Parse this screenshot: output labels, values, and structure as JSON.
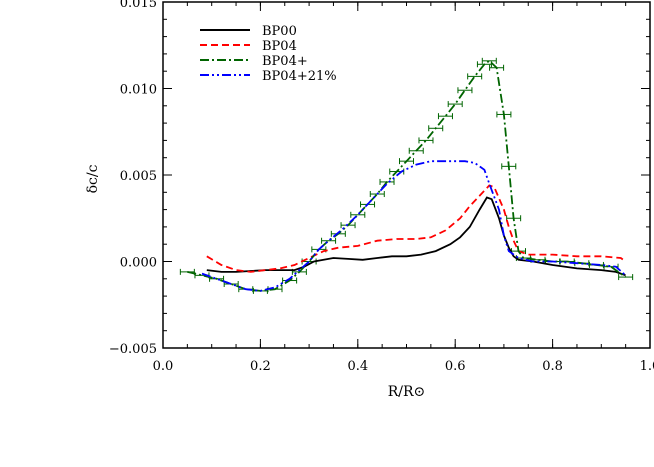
{
  "chart_data": {
    "type": "line",
    "xlabel": "R/R⊙",
    "ylabel": "δc/c",
    "xlim": [
      0.0,
      1.0
    ],
    "ylim": [
      -0.005,
      0.015
    ],
    "x_ticks": [
      {
        "value": 0.0,
        "label": "0.0"
      },
      {
        "value": 0.2,
        "label": "0.2"
      },
      {
        "value": 0.4,
        "label": "0.4"
      },
      {
        "value": 0.6,
        "label": "0.6"
      },
      {
        "value": 0.8,
        "label": "0.8"
      },
      {
        "value": 1.0,
        "label": "1.0"
      }
    ],
    "y_ticks": [
      {
        "value": -0.005,
        "label": "−0.005"
      },
      {
        "value": 0.0,
        "label": "0.000"
      },
      {
        "value": 0.005,
        "label": "0.005"
      },
      {
        "value": 0.01,
        "label": "0.010"
      },
      {
        "value": 0.015,
        "label": "0.015"
      }
    ],
    "legend_position": "top-left",
    "series": [
      {
        "name": "BP00",
        "color": "#000000",
        "dash": "solid",
        "points": [
          [
            0.09,
            -0.0005
          ],
          [
            0.12,
            -0.0006
          ],
          [
            0.15,
            -0.0006
          ],
          [
            0.18,
            -0.00055
          ],
          [
            0.21,
            -0.0005
          ],
          [
            0.24,
            -0.0005
          ],
          [
            0.27,
            -0.0005
          ],
          [
            0.29,
            -0.0003
          ],
          [
            0.31,
            0.0
          ],
          [
            0.33,
            0.0001
          ],
          [
            0.35,
            0.0002
          ],
          [
            0.38,
            0.00015
          ],
          [
            0.41,
            0.0001
          ],
          [
            0.44,
            0.0002
          ],
          [
            0.47,
            0.0003
          ],
          [
            0.5,
            0.0003
          ],
          [
            0.53,
            0.0004
          ],
          [
            0.56,
            0.0006
          ],
          [
            0.59,
            0.001
          ],
          [
            0.61,
            0.0014
          ],
          [
            0.63,
            0.002
          ],
          [
            0.65,
            0.003
          ],
          [
            0.665,
            0.0037
          ],
          [
            0.675,
            0.0036
          ],
          [
            0.69,
            0.0025
          ],
          [
            0.7,
            0.0015
          ],
          [
            0.71,
            0.0008
          ],
          [
            0.72,
            0.0003
          ],
          [
            0.73,
            0.0001
          ],
          [
            0.76,
            0.0
          ],
          [
            0.8,
            -0.0002
          ],
          [
            0.85,
            -0.0004
          ],
          [
            0.9,
            -0.0005
          ],
          [
            0.93,
            -0.0006
          ],
          [
            0.95,
            -0.0008
          ]
        ]
      },
      {
        "name": "BP04",
        "color": "#ff0000",
        "dash": "dashed",
        "points": [
          [
            0.09,
            0.0003
          ],
          [
            0.12,
            -0.0002
          ],
          [
            0.15,
            -0.0005
          ],
          [
            0.18,
            -0.0006
          ],
          [
            0.21,
            -0.0005
          ],
          [
            0.24,
            -0.0004
          ],
          [
            0.27,
            -0.0002
          ],
          [
            0.3,
            0.0002
          ],
          [
            0.33,
            0.0006
          ],
          [
            0.36,
            0.0008
          ],
          [
            0.4,
            0.0009
          ],
          [
            0.44,
            0.0012
          ],
          [
            0.48,
            0.0013
          ],
          [
            0.52,
            0.0013
          ],
          [
            0.55,
            0.0014
          ],
          [
            0.58,
            0.0018
          ],
          [
            0.61,
            0.0025
          ],
          [
            0.63,
            0.0032
          ],
          [
            0.65,
            0.0038
          ],
          [
            0.67,
            0.0044
          ],
          [
            0.68,
            0.0043
          ],
          [
            0.7,
            0.003
          ],
          [
            0.71,
            0.002
          ],
          [
            0.72,
            0.0012
          ],
          [
            0.73,
            0.0006
          ],
          [
            0.75,
            0.0004
          ],
          [
            0.8,
            0.0004
          ],
          [
            0.85,
            0.0003
          ],
          [
            0.9,
            0.0003
          ],
          [
            0.94,
            0.0002
          ],
          [
            0.95,
            0.0
          ]
        ]
      },
      {
        "name": "BP04+",
        "color": "#006400",
        "dash": "dashdot",
        "points": [
          [
            0.05,
            -0.0006
          ],
          [
            0.08,
            -0.0008
          ],
          [
            0.11,
            -0.001
          ],
          [
            0.14,
            -0.0013
          ],
          [
            0.17,
            -0.0016
          ],
          [
            0.2,
            -0.0017
          ],
          [
            0.23,
            -0.0016
          ],
          [
            0.26,
            -0.0011
          ],
          [
            0.28,
            -0.0006
          ],
          [
            0.3,
            0.0
          ],
          [
            0.32,
            0.0007
          ],
          [
            0.34,
            0.0012
          ],
          [
            0.36,
            0.0016
          ],
          [
            0.38,
            0.0021
          ],
          [
            0.4,
            0.0027
          ],
          [
            0.42,
            0.0033
          ],
          [
            0.44,
            0.0039
          ],
          [
            0.46,
            0.0046
          ],
          [
            0.48,
            0.0052
          ],
          [
            0.5,
            0.0058
          ],
          [
            0.52,
            0.0064
          ],
          [
            0.54,
            0.007
          ],
          [
            0.56,
            0.0077
          ],
          [
            0.58,
            0.0084
          ],
          [
            0.6,
            0.0091
          ],
          [
            0.62,
            0.0099
          ],
          [
            0.64,
            0.0107
          ],
          [
            0.66,
            0.0114
          ],
          [
            0.67,
            0.0116
          ],
          [
            0.685,
            0.0112
          ],
          [
            0.7,
            0.0085
          ],
          [
            0.71,
            0.0055
          ],
          [
            0.72,
            0.0025
          ],
          [
            0.73,
            0.0006
          ],
          [
            0.74,
            0.0002
          ],
          [
            0.77,
            0.0001
          ],
          [
            0.8,
            0.0
          ],
          [
            0.83,
            0.0
          ],
          [
            0.86,
            -0.0001
          ],
          [
            0.89,
            -0.0002
          ],
          [
            0.92,
            -0.0003
          ],
          [
            0.95,
            -0.0009
          ]
        ],
        "error_bars": true
      },
      {
        "name": "BP04+21%",
        "color": "#0000ff",
        "dash": "dashdotdot",
        "points": [
          [
            0.08,
            -0.0007
          ],
          [
            0.11,
            -0.001
          ],
          [
            0.14,
            -0.0013
          ],
          [
            0.17,
            -0.0016
          ],
          [
            0.2,
            -0.0017
          ],
          [
            0.23,
            -0.0015
          ],
          [
            0.26,
            -0.001
          ],
          [
            0.28,
            -0.0005
          ],
          [
            0.3,
            0.0
          ],
          [
            0.32,
            0.0007
          ],
          [
            0.34,
            0.0012
          ],
          [
            0.37,
            0.0019
          ],
          [
            0.4,
            0.0027
          ],
          [
            0.43,
            0.0036
          ],
          [
            0.46,
            0.0045
          ],
          [
            0.49,
            0.0052
          ],
          [
            0.52,
            0.0056
          ],
          [
            0.55,
            0.0058
          ],
          [
            0.58,
            0.0058
          ],
          [
            0.62,
            0.0058
          ],
          [
            0.64,
            0.0057
          ],
          [
            0.66,
            0.0053
          ],
          [
            0.67,
            0.0045
          ],
          [
            0.69,
            0.003
          ],
          [
            0.7,
            0.0015
          ],
          [
            0.71,
            0.0006
          ],
          [
            0.73,
            0.0002
          ],
          [
            0.76,
            0.0
          ],
          [
            0.8,
            0.0
          ],
          [
            0.85,
            -0.0001
          ],
          [
            0.9,
            -0.0002
          ],
          [
            0.93,
            -0.0003
          ],
          [
            0.95,
            -0.0008
          ]
        ]
      }
    ]
  }
}
